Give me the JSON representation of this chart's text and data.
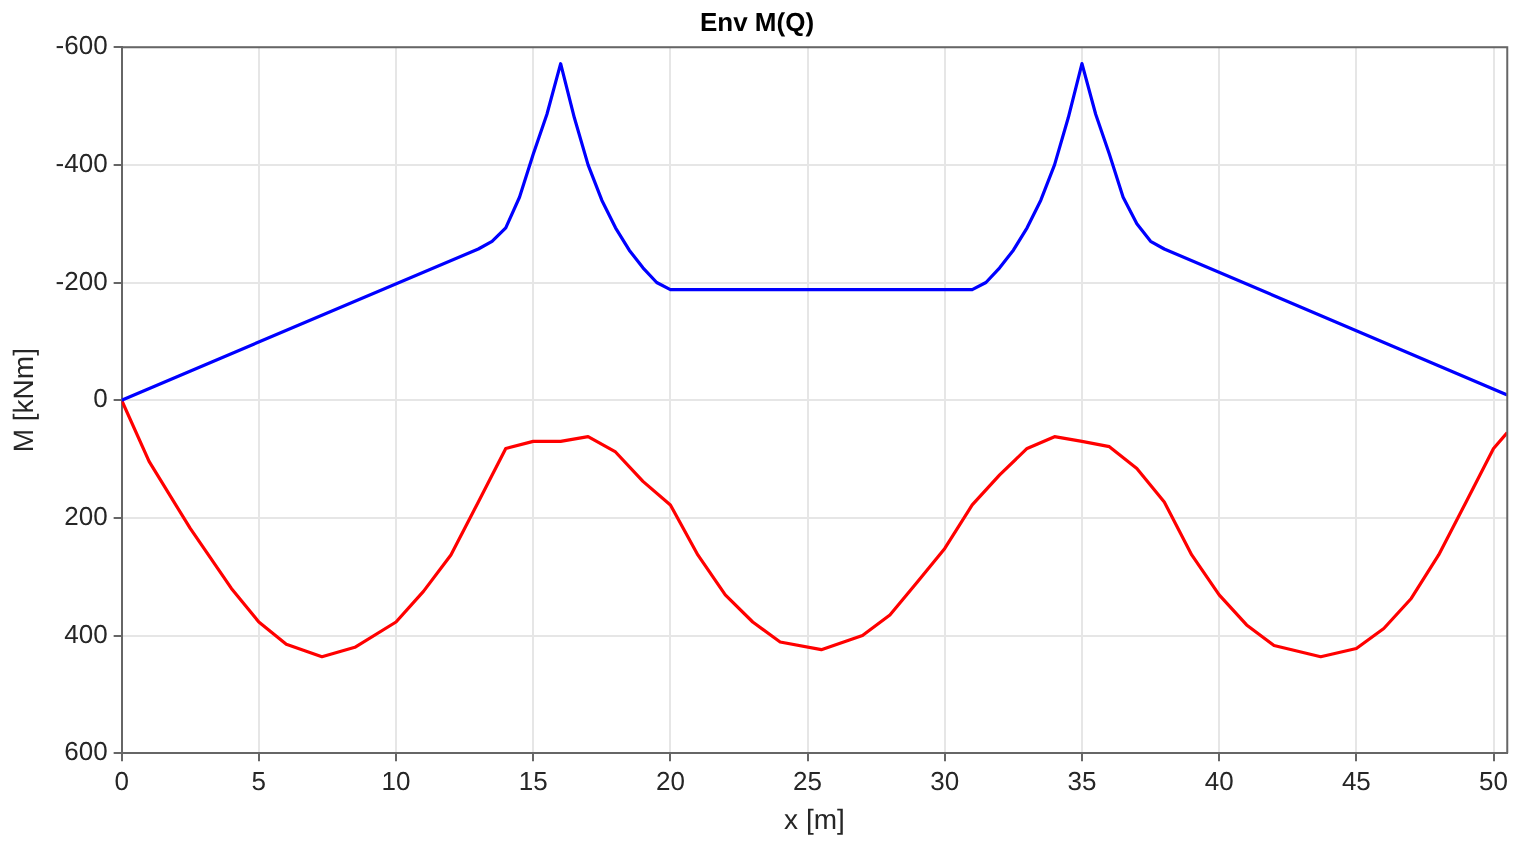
{
  "chart_data": {
    "type": "line",
    "title": "Env M(Q)",
    "xlabel": "x [m]",
    "ylabel": "M [kNm]",
    "xlim": [
      0,
      50.5
    ],
    "xticks": [
      0,
      5,
      10,
      15,
      20,
      25,
      30,
      35,
      40,
      45,
      50
    ],
    "ylim": [
      600,
      -600
    ],
    "yticks": [
      -600,
      -400,
      -200,
      0,
      200,
      400,
      600
    ],
    "grid": true,
    "legend": false,
    "marker": "none",
    "line_style": "solid",
    "series": [
      {
        "color": "#0000ff",
        "x": [
          0,
          13,
          13.5,
          14,
          14.5,
          15,
          15.5,
          16,
          16.5,
          17,
          17.5,
          18,
          18.5,
          19,
          19.5,
          20,
          31,
          31.5,
          32,
          32.5,
          33,
          33.5,
          34,
          34.5,
          35,
          35.5,
          36,
          36.5,
          37,
          37.5,
          38,
          50.5
        ],
        "values": [
          0,
          -257,
          -270,
          -293,
          -345,
          -418,
          -486,
          -572,
          -480,
          -400,
          -340,
          -293,
          -255,
          -225,
          -200,
          -188,
          -188,
          -200,
          -225,
          -255,
          -293,
          -340,
          -400,
          -480,
          -572,
          -486,
          -418,
          -345,
          -300,
          -270,
          -257,
          -9
        ]
      },
      {
        "color": "#ff0000",
        "x": [
          0,
          1,
          2.5,
          4,
          5,
          6,
          7.3,
          8.5,
          10,
          11,
          12,
          13,
          14,
          15,
          16,
          17,
          18,
          19,
          20,
          21,
          22,
          23,
          24,
          25.5,
          27,
          28,
          29,
          30,
          31,
          32,
          33,
          34,
          35,
          36,
          37,
          38,
          39,
          40,
          41,
          42,
          43.7,
          45,
          46,
          47,
          48,
          49,
          50,
          50.5
        ],
        "values": [
          0,
          104,
          218,
          320,
          377,
          415,
          436,
          420,
          377,
          325,
          263,
          173,
          82,
          70,
          70,
          62,
          88,
          138,
          178,
          263,
          331,
          377,
          411,
          424,
          400,
          365,
          309,
          252,
          178,
          127,
          82,
          62,
          70,
          79,
          116,
          173,
          263,
          331,
          382,
          417,
          436,
          422,
          388,
          337,
          263,
          173,
          82,
          55
        ]
      }
    ]
  }
}
